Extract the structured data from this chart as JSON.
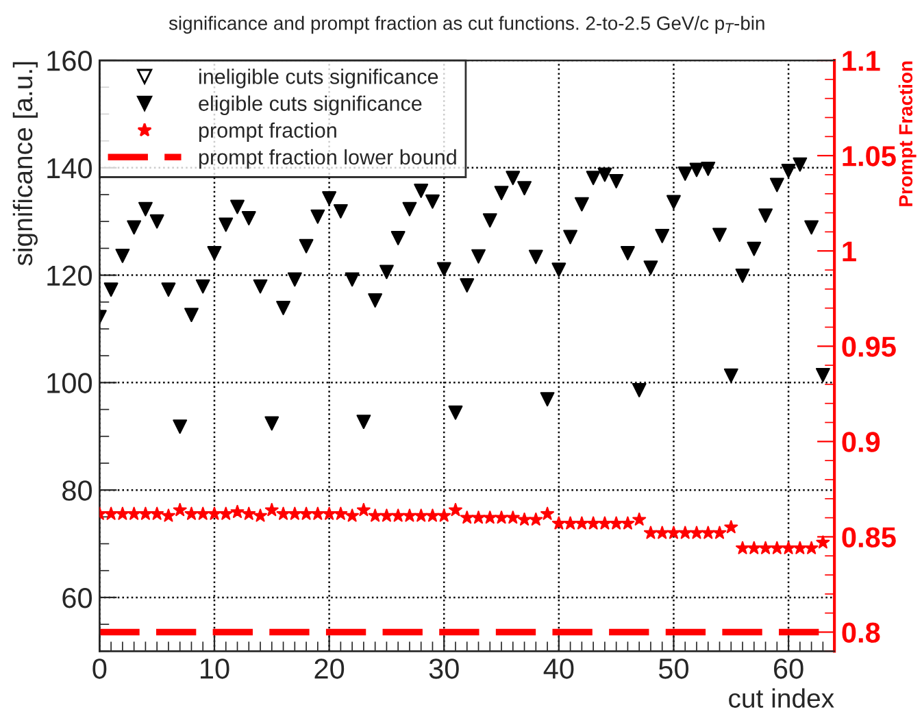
{
  "chart_data": {
    "type": "scatter",
    "title": "significance and prompt fraction as cut functions. 2-to-2.5 GeV/c p$_{T}$-bin",
    "xlabel": "cut index",
    "ylabel": "significance [a.u.]",
    "y2label": "Prompt Fraction",
    "x": [
      0,
      1,
      2,
      3,
      4,
      5,
      6,
      7,
      8,
      9,
      10,
      11,
      12,
      13,
      14,
      15,
      16,
      17,
      18,
      19,
      20,
      21,
      22,
      23,
      24,
      25,
      26,
      27,
      28,
      29,
      30,
      31,
      32,
      33,
      34,
      35,
      36,
      37,
      38,
      39,
      40,
      41,
      42,
      43,
      44,
      45,
      46,
      47,
      48,
      49,
      50,
      51,
      52,
      53,
      54,
      55,
      56,
      57,
      58,
      59,
      60,
      61,
      62,
      63
    ],
    "series": [
      {
        "name": "ineligible cuts significance",
        "marker": "triangle",
        "color": "#000000",
        "values": [
          null,
          null,
          null,
          null,
          null,
          null,
          null,
          null,
          null,
          null,
          null,
          null,
          null,
          null,
          null,
          null,
          null,
          null,
          null,
          null,
          null,
          null,
          null,
          null,
          null,
          null,
          null,
          null,
          null,
          null,
          null,
          null,
          null,
          null,
          null,
          null,
          null,
          null,
          null,
          null,
          null,
          null,
          null,
          null,
          null,
          null,
          null,
          null,
          null,
          null,
          null,
          null,
          null,
          null,
          null,
          null,
          null,
          null,
          null,
          null,
          null,
          null,
          null,
          null
        ]
      },
      {
        "name": "eligible cuts significance",
        "marker": "triangle",
        "color": "#000000",
        "values": [
          112.2,
          117.3,
          123.6,
          128.9,
          132.3,
          130.0,
          117.3,
          91.8,
          112.6,
          117.9,
          124.1,
          129.4,
          132.7,
          130.6,
          117.9,
          92.4,
          113.9,
          119.2,
          125.4,
          130.9,
          134.3,
          131.9,
          119.2,
          92.7,
          115.3,
          120.6,
          126.9,
          132.3,
          135.7,
          133.7,
          121.1,
          94.4,
          118.1,
          123.5,
          130.2,
          135.3,
          138.1,
          136.2,
          123.4,
          96.9,
          121.0,
          127.1,
          133.2,
          138.1,
          138.7,
          137.5,
          124.1,
          98.6,
          121.4,
          127.3,
          133.6,
          138.9,
          139.6,
          139.8,
          127.5,
          101.3,
          119.9,
          124.9,
          131.1,
          136.8,
          139.4,
          140.6,
          128.9,
          101.4
        ]
      },
      {
        "name": "prompt fraction",
        "marker": "star",
        "axis": "y2",
        "color": "#ff0000",
        "values": [
          0.862,
          0.862,
          0.862,
          0.862,
          0.862,
          0.862,
          0.861,
          0.864,
          0.862,
          0.862,
          0.862,
          0.862,
          0.863,
          0.862,
          0.861,
          0.864,
          0.862,
          0.862,
          0.862,
          0.862,
          0.862,
          0.862,
          0.861,
          0.864,
          0.861,
          0.861,
          0.861,
          0.861,
          0.861,
          0.861,
          0.861,
          0.864,
          0.86,
          0.86,
          0.86,
          0.86,
          0.86,
          0.859,
          0.859,
          0.862,
          0.857,
          0.857,
          0.857,
          0.857,
          0.857,
          0.857,
          0.857,
          0.859,
          0.852,
          0.852,
          0.852,
          0.852,
          0.852,
          0.852,
          0.852,
          0.855,
          0.844,
          0.844,
          0.844,
          0.844,
          0.844,
          0.844,
          0.844,
          0.847
        ]
      },
      {
        "name": "prompt fraction lower bound",
        "type": "line",
        "axis": "y2",
        "marker": "none",
        "line_style": "dashed",
        "color": "#ff0000",
        "x": [
          0,
          63
        ],
        "values": [
          0.8,
          0.8
        ]
      }
    ],
    "xlim": [
      0,
      64
    ],
    "xticks": [
      0,
      10,
      20,
      30,
      40,
      50,
      60
    ],
    "ylim": [
      50,
      160
    ],
    "yticks": [
      60,
      80,
      100,
      120,
      140,
      160
    ],
    "y2lim": [
      0.79,
      1.1
    ],
    "y2ticks": [
      0.8,
      0.85,
      0.9,
      0.95,
      1,
      1.05,
      1.1
    ],
    "grid": true,
    "legend": "top left"
  }
}
